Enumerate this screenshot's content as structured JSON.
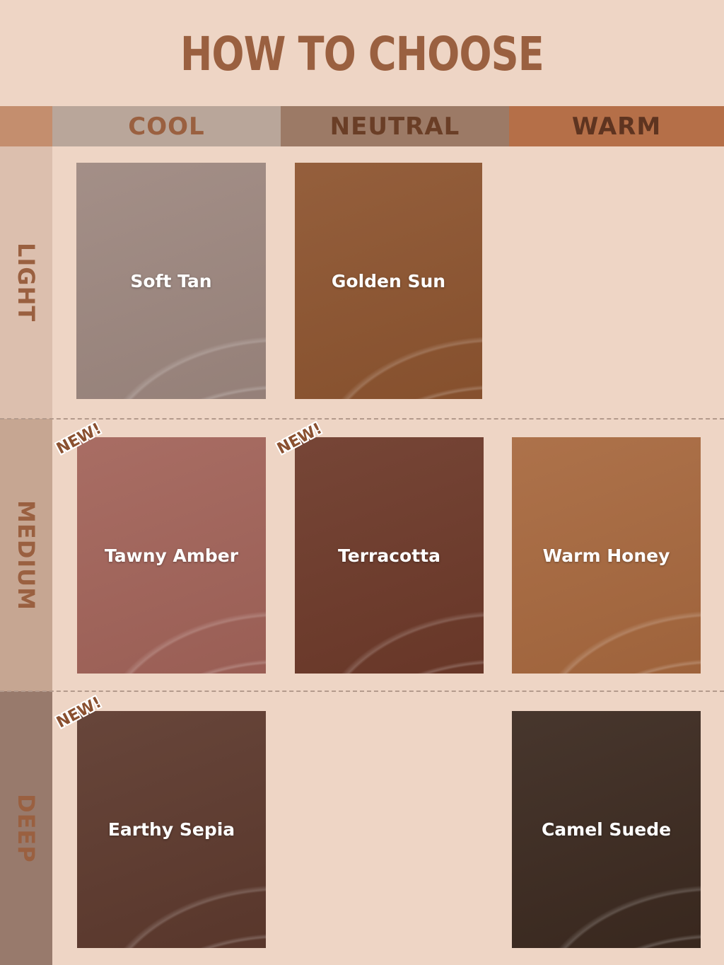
{
  "title": "HOW TO CHOOSE",
  "columns": [
    {
      "label": "COOL",
      "color": "#b9a69a"
    },
    {
      "label": "NEUTRAL",
      "color": "#9c7a66"
    },
    {
      "label": "WARM",
      "color": "#b56f48"
    }
  ],
  "rows": [
    {
      "label": "LIGHT",
      "color": "#dcbfae"
    },
    {
      "label": "MEDIUM",
      "color": "#c6a692"
    },
    {
      "label": "DEEP",
      "color": "#987a6c"
    }
  ],
  "badge": "NEW!",
  "shades": [
    {
      "name": "Soft Tan",
      "tone": "COOL",
      "depth": "LIGHT",
      "color": "#9e8880",
      "new": false
    },
    {
      "name": "Golden Sun",
      "tone": "NEUTRAL",
      "depth": "LIGHT",
      "color": "#8e5530",
      "new": false
    },
    {
      "name": "Tawny Amber",
      "tone": "COOL",
      "depth": "MEDIUM",
      "color": "#a3645a",
      "new": true
    },
    {
      "name": "Terracotta",
      "tone": "NEUTRAL",
      "depth": "MEDIUM",
      "color": "#6e3a2a",
      "new": true
    },
    {
      "name": "Warm Honey",
      "tone": "WARM",
      "depth": "MEDIUM",
      "color": "#a8693f",
      "new": false
    },
    {
      "name": "Earthy Sepia",
      "tone": "COOL",
      "depth": "DEEP",
      "color": "#5e3a2e",
      "new": true
    },
    {
      "name": "Camel Suede",
      "tone": "WARM",
      "depth": "DEEP",
      "color": "#3c2a20",
      "new": false
    }
  ]
}
